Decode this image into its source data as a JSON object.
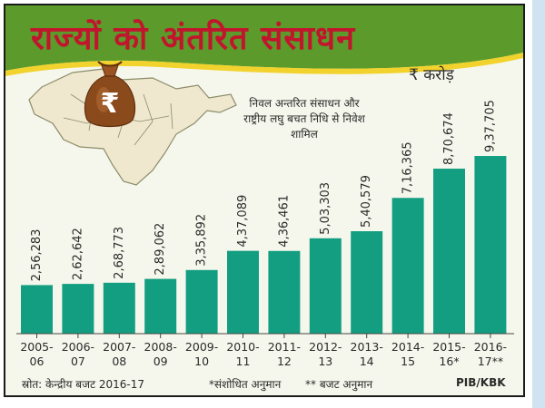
{
  "title": "राज्यों को अंतरित संसाधन",
  "unit": "₹ करोड़",
  "note": "निवल अन्तरित संसाधन और राष्ट्रीय लघु बचत निधि से निवेश शामिल",
  "colors": {
    "bar": "#139e82",
    "title": "#c2142d",
    "banner": "#5b9a2b",
    "map": "#efe8cf",
    "bag": "#8a4a1c"
  },
  "icons": {
    "map": "india-map-icon",
    "bag": "rupee-money-bag-icon"
  },
  "footer": {
    "source": "स्रोत: केन्द्रीय बजट 2016-17",
    "footnote_revised": "*संशोधित अनुमान",
    "footnote_budget": "** बजट अनुमान",
    "credit": "PIB/KBK"
  },
  "chart_data": {
    "type": "bar",
    "categories": [
      [
        "2005-",
        "06"
      ],
      [
        "2006-",
        "07"
      ],
      [
        "2007-",
        "08"
      ],
      [
        "2008-",
        "09"
      ],
      [
        "2009-",
        "10"
      ],
      [
        "2010-",
        "11"
      ],
      [
        "2011-",
        "12"
      ],
      [
        "2012-",
        "13"
      ],
      [
        "2013-",
        "14"
      ],
      [
        "2014-",
        "15"
      ],
      [
        "2015-",
        "16*"
      ],
      [
        "2016-",
        "17**"
      ]
    ],
    "values": [
      256283,
      262642,
      268773,
      289062,
      335892,
      437089,
      436461,
      503303,
      540579,
      716365,
      870674,
      937705
    ],
    "value_labels": [
      "2,56,283",
      "2,62,642",
      "2,68,773",
      "2,89,062",
      "3,35,892",
      "4,37,089",
      "4,36,461",
      "5,03,303",
      "5,40,579",
      "7,16,365",
      "8,70,674",
      "9,37,705"
    ],
    "title": "राज्यों को अंतरित संसाधन",
    "ylabel": "₹ करोड़",
    "grid": false,
    "legend": false
  }
}
